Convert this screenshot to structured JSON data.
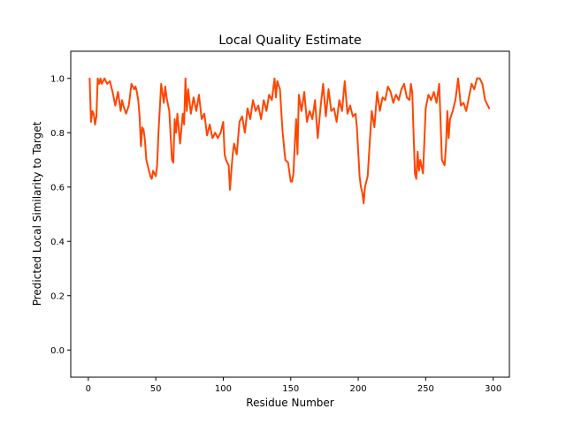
{
  "chart_data": {
    "type": "line",
    "title": "Local Quality Estimate",
    "xlabel": "Residue Number",
    "ylabel": "Predicted Local Similarity to Target",
    "xlim": [
      -13,
      312
    ],
    "ylim": [
      -0.1,
      1.1
    ],
    "x_ticks": [
      0,
      50,
      100,
      150,
      200,
      250,
      300
    ],
    "y_ticks": [
      0.0,
      0.2,
      0.4,
      0.6,
      0.8,
      1.0
    ],
    "x_tick_labels": [
      "0",
      "50",
      "100",
      "150",
      "200",
      "250",
      "300"
    ],
    "y_tick_labels": [
      "0.0",
      "0.2",
      "0.4",
      "0.6",
      "0.8",
      "1.0"
    ],
    "grid": false,
    "series": [
      {
        "color": "#ff4500",
        "x": [
          1,
          2,
          3,
          4,
          5,
          6,
          7,
          8,
          9,
          10,
          12,
          14,
          16,
          18,
          20,
          22,
          24,
          25,
          26,
          28,
          30,
          32,
          34,
          35,
          36,
          37,
          38,
          39,
          40,
          41,
          42,
          43,
          44,
          45,
          46,
          47,
          48,
          50,
          51,
          52,
          54,
          56,
          57,
          58,
          60,
          62,
          63,
          64,
          65,
          66,
          68,
          70,
          71,
          72,
          73,
          74,
          76,
          78,
          80,
          82,
          84,
          86,
          88,
          90,
          92,
          94,
          96,
          98,
          100,
          101,
          102,
          103,
          104,
          105,
          106,
          107,
          108,
          110,
          112,
          114,
          116,
          118,
          120,
          122,
          124,
          126,
          128,
          130,
          132,
          134,
          136,
          138,
          139,
          140,
          142,
          144,
          146,
          148,
          150,
          151,
          152,
          153,
          154,
          155,
          156,
          158,
          160,
          162,
          164,
          166,
          168,
          170,
          172,
          174,
          176,
          178,
          180,
          182,
          184,
          186,
          188,
          190,
          192,
          194,
          196,
          198,
          199,
          200,
          201,
          202,
          203,
          204,
          205,
          206,
          207,
          208,
          210,
          212,
          214,
          216,
          218,
          220,
          222,
          224,
          226,
          228,
          230,
          232,
          234,
          236,
          238,
          239,
          240,
          241,
          242,
          243,
          244,
          245,
          246,
          248,
          250,
          252,
          254,
          256,
          258,
          260,
          262,
          264,
          265,
          266,
          267,
          268,
          270,
          272,
          274,
          276,
          278,
          280,
          282,
          284,
          286,
          288,
          290,
          292,
          294,
          296,
          297
        ],
        "y": [
          1.0,
          0.84,
          0.88,
          0.87,
          0.83,
          0.86,
          1.0,
          0.98,
          1.0,
          0.98,
          1.0,
          0.98,
          0.99,
          0.95,
          0.9,
          0.95,
          0.88,
          0.92,
          0.9,
          0.87,
          0.9,
          0.98,
          0.96,
          0.97,
          0.95,
          0.92,
          0.86,
          0.75,
          0.82,
          0.81,
          0.77,
          0.7,
          0.68,
          0.66,
          0.64,
          0.63,
          0.66,
          0.64,
          0.68,
          0.8,
          0.98,
          0.91,
          0.97,
          0.93,
          0.88,
          0.7,
          0.69,
          0.85,
          0.8,
          0.87,
          0.76,
          0.87,
          0.83,
          1.0,
          0.88,
          0.96,
          0.87,
          0.93,
          0.88,
          0.94,
          0.85,
          0.87,
          0.79,
          0.83,
          0.78,
          0.8,
          0.78,
          0.8,
          0.84,
          0.72,
          0.7,
          0.69,
          0.68,
          0.59,
          0.66,
          0.72,
          0.76,
          0.72,
          0.84,
          0.86,
          0.8,
          0.89,
          0.85,
          0.92,
          0.88,
          0.9,
          0.85,
          0.92,
          0.88,
          0.94,
          0.92,
          1.0,
          0.93,
          0.99,
          0.96,
          0.8,
          0.7,
          0.69,
          0.62,
          0.62,
          0.65,
          0.76,
          0.85,
          0.72,
          0.94,
          0.88,
          0.95,
          0.84,
          0.88,
          0.85,
          0.92,
          0.78,
          0.89,
          0.98,
          0.86,
          0.96,
          0.88,
          0.89,
          0.84,
          0.92,
          0.88,
          0.99,
          0.87,
          0.9,
          0.86,
          0.87,
          0.82,
          0.73,
          0.64,
          0.6,
          0.58,
          0.54,
          0.6,
          0.62,
          0.64,
          0.72,
          0.88,
          0.82,
          0.95,
          0.88,
          0.93,
          0.92,
          0.97,
          0.95,
          0.91,
          0.94,
          0.92,
          0.96,
          0.98,
          0.93,
          0.92,
          0.98,
          0.95,
          0.8,
          0.65,
          0.63,
          0.73,
          0.66,
          0.7,
          0.65,
          0.89,
          0.94,
          0.92,
          0.95,
          0.91,
          0.98,
          0.7,
          0.68,
          0.75,
          0.88,
          0.78,
          0.85,
          0.88,
          0.92,
          1.0,
          0.9,
          0.91,
          0.88,
          0.93,
          0.98,
          0.96,
          1.0,
          1.0,
          0.98,
          0.92,
          0.9,
          0.89
        ]
      }
    ]
  }
}
